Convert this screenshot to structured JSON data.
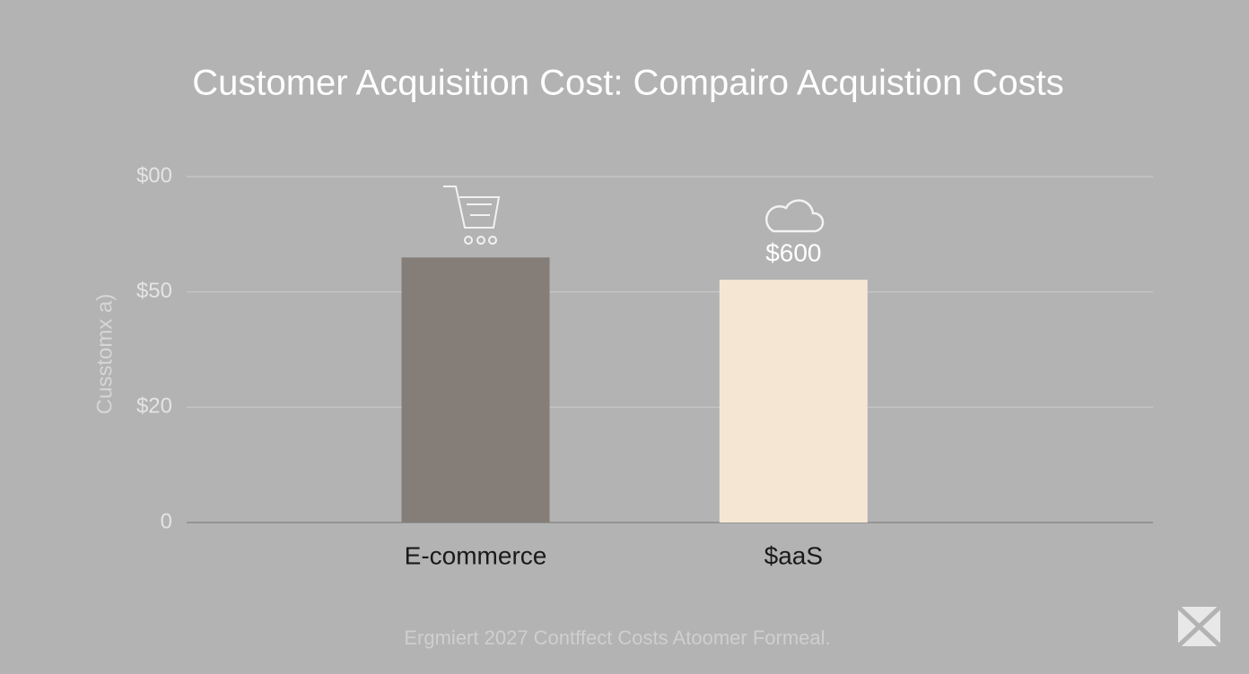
{
  "chart_data": {
    "type": "bar",
    "title": "Customer Acquisition Cost: Compairo Acquistion Costs",
    "y_label": "Cusstomx a)",
    "footer": "Ergmiert 2027 Contffect Costs Atoomer Formeal.",
    "categories": [
      "E-commerce",
      "$aaS"
    ],
    "values": [
      655,
      600
    ],
    "value_labels": [
      null,
      "$600"
    ],
    "colors": [
      "#857d78",
      "#f5e6d3"
    ],
    "ylim": [
      0,
      855
    ],
    "yticks": [
      0,
      {
        "value": 285,
        "label": "$20"
      },
      {
        "value": 570,
        "label": "$50"
      },
      {
        "value": 855,
        "label": "$00"
      }
    ],
    "grid": true
  }
}
